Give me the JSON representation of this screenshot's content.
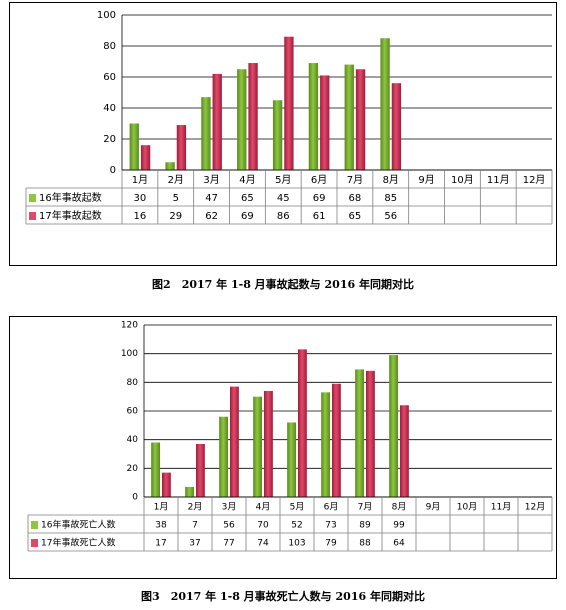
{
  "colors": {
    "green_fill": "#8dc63f",
    "green_dark": "#5a8a1e",
    "red_fill": "#e04a6a",
    "red_dark": "#a01c3a",
    "grid": "#000000",
    "table_border": "#7f7f7f"
  },
  "figures": [
    {
      "caption": "图2　2017 年 1-8 月事故起数与 2016 年同期对比",
      "chart_data": {
        "type": "bar",
        "categories": [
          "1月",
          "2月",
          "3月",
          "4月",
          "5月",
          "6月",
          "7月",
          "8月",
          "9月",
          "10月",
          "11月",
          "12月"
        ],
        "series": [
          {
            "name": "16年事故起数",
            "values": [
              30,
              5,
              47,
              65,
              45,
              69,
              68,
              85,
              null,
              null,
              null,
              null
            ],
            "table": [
              "30",
              "5",
              "47",
              "65",
              "45",
              "69",
              "68",
              "85",
              "",
              "",
              "",
              ""
            ]
          },
          {
            "name": "17年事故起数",
            "values": [
              16,
              29,
              62,
              69,
              86,
              61,
              65,
              56,
              null,
              null,
              null,
              null
            ],
            "table": [
              "16",
              "29",
              "62",
              "69",
              "86",
              "61",
              "65",
              "56",
              "",
              "",
              "",
              ""
            ]
          }
        ],
        "ylim": [
          0,
          100
        ],
        "yticks": [
          "0",
          "20",
          "40",
          "60",
          "80",
          "100"
        ],
        "ytick_values": [
          0,
          20,
          40,
          60,
          80,
          100
        ],
        "grid": true,
        "legend": "data-table"
      }
    },
    {
      "caption": "图3　2017 年 1-8 月事故死亡人数与 2016 年同期对比",
      "chart_data": {
        "type": "bar",
        "categories": [
          "1月",
          "2月",
          "3月",
          "4月",
          "5月",
          "6月",
          "7月",
          "8月",
          "9月",
          "10月",
          "11月",
          "12月"
        ],
        "series": [
          {
            "name": "16年事故死亡人数",
            "values": [
              38,
              7,
              56,
              70,
              52,
              73,
              89,
              99,
              null,
              null,
              null,
              null
            ],
            "table": [
              "38",
              "7",
              "56",
              "70",
              "52",
              "73",
              "89",
              "99",
              "",
              "",
              "",
              ""
            ]
          },
          {
            "name": "17年事故死亡人数",
            "values": [
              17,
              37,
              77,
              74,
              103,
              79,
              88,
              64,
              null,
              null,
              null,
              null
            ],
            "table": [
              "17",
              "37",
              "77",
              "74",
              "103",
              "79",
              "88",
              "64",
              "",
              "",
              "",
              ""
            ]
          }
        ],
        "ylim": [
          0,
          120
        ],
        "yticks": [
          "0",
          "20",
          "40",
          "60",
          "80",
          "100",
          "120"
        ],
        "ytick_values": [
          0,
          20,
          40,
          60,
          80,
          100,
          120
        ],
        "grid": true,
        "legend": "data-table"
      }
    }
  ]
}
